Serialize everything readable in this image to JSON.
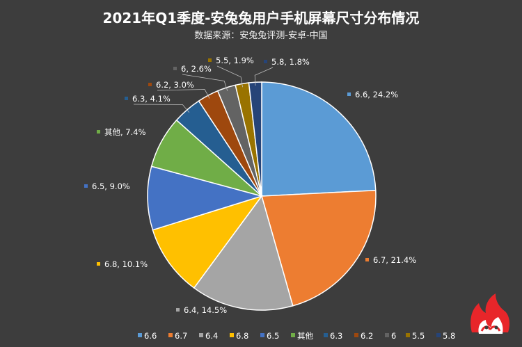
{
  "chart_data": {
    "type": "pie",
    "title": "2021年Q1季度-安兔兔用户手机屏幕尺寸分布情况",
    "subtitle": "数据来源：安兔兔评测-安卓-中国",
    "legend_position": "bottom",
    "label_format": "{name}, {value}%",
    "slices": [
      {
        "name": "6.6",
        "value": 24.2,
        "color": "#5b9bd5"
      },
      {
        "name": "6.7",
        "value": 21.4,
        "color": "#ed7d31"
      },
      {
        "name": "6.4",
        "value": 14.5,
        "color": "#a5a5a5"
      },
      {
        "name": "6.8",
        "value": 10.1,
        "color": "#ffc000"
      },
      {
        "name": "6.5",
        "value": 9.0,
        "color": "#4472c4"
      },
      {
        "name": "其他",
        "value": 7.4,
        "color": "#70ad47"
      },
      {
        "name": "6.3",
        "value": 4.1,
        "color": "#255e91"
      },
      {
        "name": "6.2",
        "value": 3.0,
        "color": "#9e480e"
      },
      {
        "name": "6",
        "value": 2.6,
        "color": "#636363"
      },
      {
        "name": "5.5",
        "value": 1.9,
        "color": "#997300"
      },
      {
        "name": "5.8",
        "value": 1.8,
        "color": "#264478"
      }
    ]
  },
  "logo": {
    "icon": "antutu-logo-icon",
    "color": "#e8262a"
  }
}
